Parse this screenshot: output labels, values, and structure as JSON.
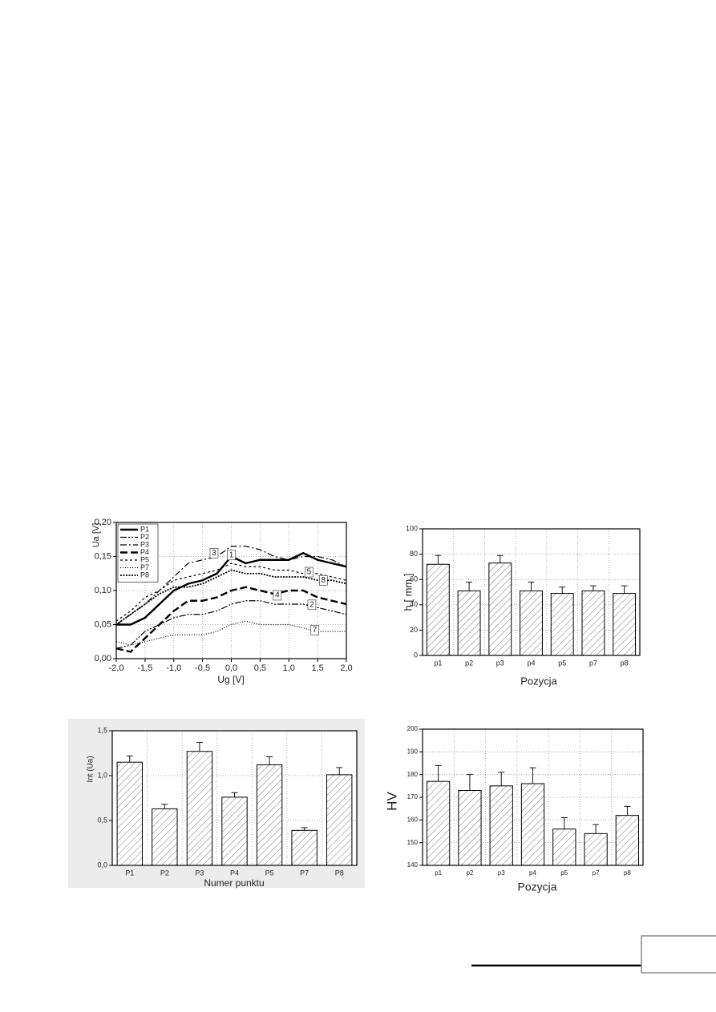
{
  "chart_data": [
    {
      "type": "line",
      "ylabel": "Ua [V]",
      "xlabel": "Ug [V]",
      "x": [
        -2.0,
        -1.75,
        -1.5,
        -1.25,
        -1.0,
        -0.75,
        -0.5,
        -0.25,
        0.0,
        0.25,
        0.5,
        0.75,
        1.0,
        1.25,
        1.5,
        1.75,
        2.0
      ],
      "series": [
        {
          "name": "P1",
          "color": "#000000",
          "dash": "solid",
          "values": [
            0.05,
            0.05,
            0.06,
            0.08,
            0.1,
            0.11,
            0.115,
            0.125,
            0.15,
            0.14,
            0.145,
            0.145,
            0.145,
            0.155,
            0.145,
            0.14,
            0.135
          ]
        },
        {
          "name": "P2",
          "color": "#000000",
          "dash": "dashdotdot",
          "values": [
            0.015,
            0.02,
            0.04,
            0.05,
            0.06,
            0.065,
            0.065,
            0.07,
            0.08,
            0.085,
            0.085,
            0.08,
            0.08,
            0.08,
            0.075,
            0.07,
            0.065
          ]
        },
        {
          "name": "P3",
          "color": "#000000",
          "dash": "dashdot",
          "values": [
            0.05,
            0.065,
            0.08,
            0.1,
            0.12,
            0.14,
            0.145,
            0.15,
            0.165,
            0.165,
            0.16,
            0.15,
            0.145,
            0.15,
            0.15,
            0.145,
            0.135
          ]
        },
        {
          "name": "P4",
          "color": "#000000",
          "dash": "dash",
          "values": [
            0.015,
            0.01,
            0.03,
            0.05,
            0.07,
            0.085,
            0.085,
            0.09,
            0.1,
            0.105,
            0.1,
            0.095,
            0.1,
            0.1,
            0.09,
            0.085,
            0.08
          ]
        },
        {
          "name": "P5",
          "color": "#000000",
          "dash": "shortdash",
          "values": [
            0.055,
            0.07,
            0.09,
            0.1,
            0.115,
            0.12,
            0.125,
            0.13,
            0.14,
            0.135,
            0.135,
            0.13,
            0.13,
            0.125,
            0.125,
            0.12,
            0.115
          ]
        },
        {
          "name": "P7",
          "color": "#000000",
          "dash": "finedot",
          "values": [
            0.025,
            0.02,
            0.025,
            0.03,
            0.035,
            0.035,
            0.035,
            0.04,
            0.05,
            0.055,
            0.05,
            0.05,
            0.05,
            0.045,
            0.04,
            0.04,
            0.04
          ]
        },
        {
          "name": "P8",
          "color": "#000000",
          "dash": "dot",
          "values": [
            0.05,
            0.065,
            0.08,
            0.095,
            0.105,
            0.105,
            0.11,
            0.12,
            0.13,
            0.125,
            0.125,
            0.12,
            0.12,
            0.12,
            0.115,
            0.115,
            0.11
          ]
        }
      ],
      "annotations": [
        {
          "label": "3",
          "x": -0.3,
          "y": 0.155
        },
        {
          "label": "1",
          "x": 0.0,
          "y": 0.152
        },
        {
          "label": "5",
          "x": 1.35,
          "y": 0.127
        },
        {
          "label": "8",
          "x": 1.6,
          "y": 0.115
        },
        {
          "label": "4",
          "x": 0.8,
          "y": 0.093
        },
        {
          "label": "2",
          "x": 1.4,
          "y": 0.079
        },
        {
          "label": "7",
          "x": 1.45,
          "y": 0.042
        }
      ],
      "xlim": [
        -2.0,
        2.0
      ],
      "xticks": [
        {
          "value": -2.0,
          "label": "-2,0"
        },
        {
          "value": -1.5,
          "label": "-1,5"
        },
        {
          "value": -1.0,
          "label": "-1,0"
        },
        {
          "value": -0.5,
          "label": "-0,5"
        },
        {
          "value": 0.0,
          "label": "0,0"
        },
        {
          "value": 0.5,
          "label": "0,5"
        },
        {
          "value": 1.0,
          "label": "1,0"
        },
        {
          "value": 1.5,
          "label": "1,5"
        },
        {
          "value": 2.0,
          "label": "2,0"
        }
      ],
      "ylim": [
        0,
        0.2
      ],
      "yticks": [
        {
          "value": 0,
          "label": "0,00"
        },
        {
          "value": 0.05,
          "label": "0,05"
        },
        {
          "value": 0.1,
          "label": "0,10"
        },
        {
          "value": 0.15,
          "label": "0,15"
        },
        {
          "value": 0.2,
          "label": "0,20"
        }
      ],
      "grid": true,
      "legend": "upper left"
    },
    {
      "type": "bar",
      "ylabel": "h [ mm ]",
      "xlabel": "Pozycja",
      "categories": [
        "p1",
        "p2",
        "p3",
        "p4",
        "p5",
        "p7",
        "p8"
      ],
      "values": [
        72,
        51,
        73,
        51,
        49,
        51,
        49
      ],
      "errors": [
        7,
        7,
        6,
        7,
        5,
        4,
        6
      ],
      "color": "#000000",
      "ylim": [
        0,
        100
      ],
      "yticks": [
        0,
        20,
        40,
        60,
        80,
        100
      ],
      "grid": true
    },
    {
      "type": "bar",
      "ylabel": "Int (Ua)",
      "xlabel": "Numer punktu",
      "categories": [
        "P1",
        "P2",
        "P3",
        "P4",
        "P5",
        "P7",
        "P8"
      ],
      "values": [
        1.15,
        0.63,
        1.27,
        0.76,
        1.12,
        0.39,
        1.01
      ],
      "errors": [
        0.07,
        0.05,
        0.1,
        0.05,
        0.09,
        0.03,
        0.08
      ],
      "color": "#000000",
      "ylim": [
        0,
        1.5
      ],
      "yticks": [
        {
          "value": 0,
          "label": "0,0"
        },
        {
          "value": 0.5,
          "label": "0,5"
        },
        {
          "value": 1.0,
          "label": "1,0"
        },
        {
          "value": 1.5,
          "label": "1,5"
        }
      ],
      "grid": true
    },
    {
      "type": "bar",
      "ylabel": "HV",
      "xlabel": "Pozycja",
      "categories": [
        "p1",
        "p2",
        "p3",
        "p4",
        "p5",
        "p7",
        "p8"
      ],
      "values": [
        177,
        173,
        175,
        176,
        156,
        154,
        162
      ],
      "errors": [
        7,
        7,
        6,
        7,
        5,
        4,
        4
      ],
      "color": "#000000",
      "ylim": [
        140,
        200
      ],
      "yticks": [
        140,
        150,
        160,
        170,
        180,
        190,
        200
      ],
      "grid": true
    }
  ]
}
